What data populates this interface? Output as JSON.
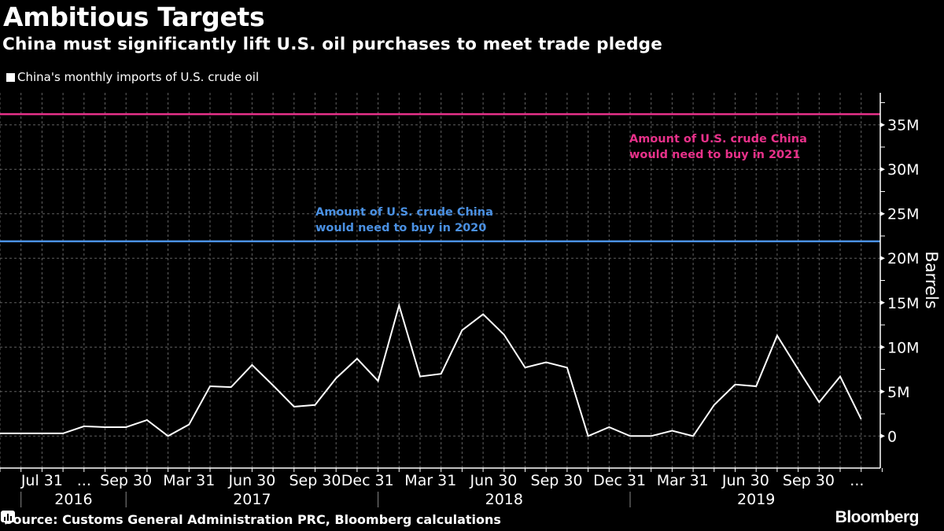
{
  "header": {
    "title": "Ambitious Targets",
    "subtitle": "China must significantly lift U.S. oil purchases to meet trade pledge"
  },
  "footer": {
    "source": "Source: Customs General Administration PRC, Bloomberg calculations",
    "brand": "Bloomberg",
    "brand_icon": "bloomberg-terminal-icon"
  },
  "colors": {
    "background": "#000000",
    "series": "#ffffff",
    "target_2021": "#e8318a",
    "target_2020": "#4a90e2",
    "grid": "#8a8a8a"
  },
  "chart_data": {
    "type": "line",
    "title": "Ambitious Targets",
    "subtitle": "China must significantly lift U.S. oil purchases to meet trade pledge",
    "xlabel": "",
    "ylabel": "Barrels",
    "ylim": [
      -3.6,
      38.6
    ],
    "y_ticks": [
      0,
      5,
      10,
      15,
      20,
      25,
      30,
      35
    ],
    "y_tick_labels": [
      "0",
      "5M",
      "10M",
      "15M",
      "20M",
      "25M",
      "30M",
      "35M"
    ],
    "y_axis_side": "right",
    "grid": true,
    "legend": {
      "position": "top-left",
      "entries": [
        "China's monthly imports of U.S. crude oil"
      ]
    },
    "x_count": 42,
    "x_tick_labels": [
      {
        "label": "Jul 31",
        "at": 2
      },
      {
        "label": "...",
        "at": 4
      },
      {
        "label": "Sep 30",
        "at": 6
      },
      {
        "label": "Mar 31",
        "at": 9
      },
      {
        "label": "Jun 30",
        "at": 12
      },
      {
        "label": "Sep 30",
        "at": 15
      },
      {
        "label": "Dec 31",
        "at": 17.5
      },
      {
        "label": "Mar 31",
        "at": 20.5
      },
      {
        "label": "Jun 30",
        "at": 23.5
      },
      {
        "label": "Sep 30",
        "at": 26.5
      },
      {
        "label": "Dec 31",
        "at": 29.5
      },
      {
        "label": "Mar 31",
        "at": 32.5
      },
      {
        "label": "Jun 30",
        "at": 35.5
      },
      {
        "label": "Sep 30",
        "at": 38.5
      },
      {
        "label": "...",
        "at": 40.8
      }
    ],
    "year_labels": [
      {
        "label": "2016",
        "at": 3.5
      },
      {
        "label": "2017",
        "at": 12
      },
      {
        "label": "2018",
        "at": 24
      },
      {
        "label": "2019",
        "at": 36
      }
    ],
    "year_dividers": [
      1,
      6,
      18,
      30
    ],
    "series": [
      {
        "name": "China's monthly imports of U.S. crude oil",
        "unit": "million barrels",
        "values": [
          0.3,
          0.3,
          0.3,
          0.3,
          1.1,
          1.0,
          1.0,
          1.8,
          0.0,
          1.3,
          5.6,
          5.5,
          8.0,
          5.7,
          3.3,
          3.5,
          6.5,
          8.7,
          6.2,
          14.7,
          6.7,
          7.0,
          11.9,
          13.7,
          11.4,
          7.7,
          8.3,
          7.7,
          0.0,
          1.0,
          0.0,
          0.0,
          0.6,
          0.0,
          3.5,
          5.8,
          5.6,
          11.3,
          7.5,
          3.8,
          6.7,
          1.9
        ]
      }
    ],
    "reference_lines": [
      {
        "name": "2021 target",
        "value": 36.2,
        "label_lines": [
          "Amount of U.S. crude China",
          "would need to buy in 2021"
        ],
        "color": "#e8318a"
      },
      {
        "name": "2020 target",
        "value": 21.9,
        "label_lines": [
          "Amount of U.S. crude China",
          "would need to buy in 2020"
        ],
        "color": "#4a90e2"
      }
    ]
  }
}
